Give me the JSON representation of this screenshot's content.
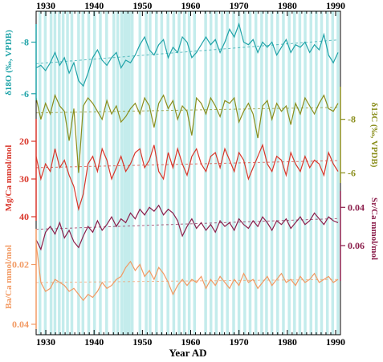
{
  "chart_data": {
    "type": "line",
    "xlabel": "Year AD",
    "x_ticks": [
      "1930",
      "1940",
      "1950",
      "1960",
      "1970",
      "1980",
      "1990"
    ],
    "xlim": [
      1928,
      1991
    ],
    "band_color": "#c4ecec",
    "band_years": [
      1928.5,
      1929.6,
      1930.8,
      1931.6,
      1932.5,
      1933.3,
      1934.2,
      1935.1,
      1936.5,
      1937.4,
      1938.6,
      1939.8,
      1941.0,
      1942.3,
      1943.8,
      1944.6,
      1945.4,
      1946.0,
      1946.5,
      1947.0,
      1947.6,
      1949.2,
      1950.5,
      1951.3,
      1952.6,
      1953.7,
      1955.0,
      1956.2,
      1957.3,
      1958.4,
      1959.4,
      1960.5,
      1962.8,
      1963.9,
      1965.0,
      1966.2,
      1967.3,
      1968.6,
      1969.7,
      1970.9,
      1972.0,
      1973.2,
      1974.4,
      1975.4,
      1976.5,
      1977.7,
      1978.9,
      1980.1,
      1981.2,
      1982.3,
      1983.4,
      1984.6,
      1985.7,
      1986.8,
      1988.0,
      1989.1,
      1990.2
    ],
    "series": [
      {
        "name": "δ18O",
        "color": "#1fa3a8",
        "ylabel": "δ18O (‰, VPDB)",
        "axis_side": "left",
        "ticks": [
          "-8",
          "-6"
        ],
        "tick_values": [
          -8,
          -6
        ],
        "range": [
          -8.7,
          -5.9
        ],
        "inverted": true,
        "values": [
          -7.0,
          -7.1,
          -6.9,
          -7.2,
          -7.6,
          -7.1,
          -7.4,
          -6.8,
          -7.2,
          -6.5,
          -6.3,
          -6.8,
          -7.4,
          -7.7,
          -7.3,
          -7.1,
          -7.4,
          -7.6,
          -7.0,
          -7.3,
          -7.2,
          -7.5,
          -7.9,
          -8.2,
          -7.7,
          -7.5,
          -7.9,
          -8.1,
          -7.4,
          -7.8,
          -7.6,
          -8.2,
          -8.0,
          -7.4,
          -7.6,
          -7.9,
          -8.2,
          -7.9,
          -8.1,
          -7.6,
          -8.0,
          -8.5,
          -8.2,
          -8.7,
          -8.0,
          -7.9,
          -8.1,
          -7.6,
          -8.0,
          -7.8,
          -8.0,
          -7.5,
          -7.8,
          -8.1,
          -7.6,
          -7.9,
          -7.8,
          -8.0,
          -7.6,
          -7.9,
          -7.7,
          -8.3,
          -7.5,
          -7.2,
          -7.6
        ]
      },
      {
        "name": "δ13C",
        "color": "#8a8e1c",
        "ylabel": "δ13C (‰, VPDB)",
        "axis_side": "right",
        "ticks": [
          "-8",
          "-6"
        ],
        "tick_values": [
          -8,
          -6
        ],
        "range": [
          -9.1,
          -5.8
        ],
        "inverted": true,
        "values": [
          -8.8,
          -8.0,
          -8.6,
          -8.2,
          -8.9,
          -8.5,
          -8.3,
          -7.2,
          -8.4,
          -6.0,
          -8.5,
          -8.8,
          -8.6,
          -8.3,
          -8.0,
          -8.7,
          -8.2,
          -8.5,
          -7.9,
          -8.1,
          -8.4,
          -8.6,
          -8.2,
          -8.8,
          -8.5,
          -7.7,
          -8.6,
          -8.9,
          -8.4,
          -8.7,
          -8.0,
          -8.5,
          -8.3,
          -7.4,
          -8.8,
          -8.6,
          -8.2,
          -8.8,
          -8.5,
          -8.1,
          -8.7,
          -8.6,
          -8.8,
          -7.9,
          -8.3,
          -8.6,
          -8.2,
          -7.3,
          -8.5,
          -8.7,
          -8.0,
          -8.6,
          -8.3,
          -8.5,
          -7.8,
          -8.6,
          -8.2,
          -8.8,
          -8.5,
          -8.2,
          -8.6,
          -8.9,
          -8.4,
          -8.3,
          -8.6
        ]
      },
      {
        "name": "Mg/Ca",
        "color": "#d9362a",
        "ylabel": "Mg/Ca mmol/mol",
        "axis_side": "left",
        "ticks": [
          "20",
          "30",
          "40"
        ],
        "tick_values": [
          20,
          30,
          40
        ],
        "range": [
          20,
          40
        ],
        "inverted": true,
        "values": [
          24,
          30,
          26,
          28,
          22,
          27,
          25,
          29,
          32,
          38,
          34,
          26,
          24,
          28,
          22,
          25,
          30,
          27,
          24,
          28,
          26,
          23,
          22,
          27,
          25,
          21,
          28,
          30,
          23,
          27,
          22,
          26,
          29,
          24,
          22,
          26,
          28,
          24,
          23,
          27,
          22,
          25,
          28,
          23,
          25,
          30,
          27,
          24,
          21,
          26,
          28,
          24,
          25,
          29,
          23,
          26,
          28,
          24,
          27,
          25,
          26,
          29,
          23,
          26,
          28
        ]
      },
      {
        "name": "Sr/Ca",
        "color": "#8c1f4c",
        "ylabel": "Sr/Ca mmol/mol",
        "axis_side": "right",
        "ticks": [
          "0.04",
          "0.06"
        ],
        "tick_values": [
          0.04,
          0.06
        ],
        "range": [
          0.034,
          0.068
        ],
        "inverted": true,
        "values": [
          0.057,
          0.062,
          0.053,
          0.05,
          0.054,
          0.048,
          0.056,
          0.052,
          0.058,
          0.061,
          0.055,
          0.05,
          0.053,
          0.047,
          0.052,
          0.049,
          0.045,
          0.05,
          0.046,
          0.048,
          0.043,
          0.046,
          0.041,
          0.044,
          0.04,
          0.042,
          0.039,
          0.044,
          0.041,
          0.043,
          0.047,
          0.055,
          0.05,
          0.046,
          0.051,
          0.048,
          0.052,
          0.049,
          0.053,
          0.047,
          0.05,
          0.048,
          0.052,
          0.046,
          0.049,
          0.051,
          0.047,
          0.05,
          0.045,
          0.048,
          0.052,
          0.047,
          0.049,
          0.046,
          0.051,
          0.048,
          0.045,
          0.049,
          0.047,
          0.043,
          0.046,
          0.049,
          0.045,
          0.047,
          0.048
        ]
      },
      {
        "name": "Ba/Ca",
        "color": "#f29a63",
        "ylabel": "Ba/Ca mmol/mol",
        "axis_side": "left",
        "ticks": [
          "0.02",
          "0.04"
        ],
        "tick_values": [
          0.02,
          0.04
        ],
        "range": [
          0.011,
          0.04
        ],
        "inverted": true,
        "values": [
          0.013,
          0.026,
          0.029,
          0.028,
          0.025,
          0.026,
          0.027,
          0.029,
          0.028,
          0.03,
          0.032,
          0.03,
          0.031,
          0.029,
          0.026,
          0.028,
          0.027,
          0.025,
          0.024,
          0.021,
          0.019,
          0.022,
          0.02,
          0.024,
          0.022,
          0.025,
          0.021,
          0.023,
          0.026,
          0.03,
          0.027,
          0.025,
          0.027,
          0.025,
          0.026,
          0.024,
          0.028,
          0.025,
          0.027,
          0.024,
          0.026,
          0.028,
          0.025,
          0.027,
          0.023,
          0.026,
          0.025,
          0.028,
          0.026,
          0.024,
          0.027,
          0.025,
          0.023,
          0.026,
          0.025,
          0.027,
          0.024,
          0.026,
          0.025,
          0.023,
          0.026,
          0.025,
          0.024,
          0.026,
          0.025
        ]
      }
    ]
  }
}
